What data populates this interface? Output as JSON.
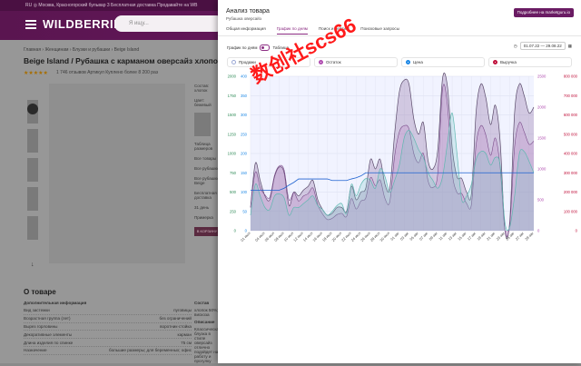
{
  "wb": {
    "top_strip": "RU   ◎ Москва, Красногорский бульвар 3   Бесплатная доставка   Продавайте на WB",
    "logo": "WILDBERRIES",
    "search_placeholder": "Я ищу...",
    "breadcrumb": "Главная  ›  Женщинам  ›  Блузки и рубашки  ›  Beige Island",
    "product_title": "Beige Island / Рубашка с карманом оверсайз хлопок с длинным",
    "stars": "★★★★★",
    "meta": "1 746 отзывов    Артикул            Куплено более 8 200 раз",
    "side_labels": [
      "Состав: хлопок",
      "Цвет: бежевый",
      "Таблица размеров",
      "Все товары",
      "Все рубашки",
      "Все рубашки Beige",
      "Бесплатная доставка",
      "31 день",
      "Примерка"
    ],
    "buy_label": "В КОРЗИНУ",
    "about_title": "О товаре",
    "specs_title": "Дополнительная информация",
    "specs": [
      {
        "k": "Вид застежки",
        "v": "пуговицы"
      },
      {
        "k": "Возрастная группа (лет)",
        "v": "без ограничений"
      },
      {
        "k": "Вырез горловины",
        "v": "воротник-стойка"
      },
      {
        "k": "Декоративные элементы",
        "v": "карман"
      },
      {
        "k": "Длина изделия по спинке",
        "v": "75 см"
      },
      {
        "k": "Назначение",
        "v": "большие размеры; для беременных; офис"
      }
    ],
    "composition_title": "Состав",
    "composition": "хлопок 50%; вискоза",
    "description_title": "Описание",
    "description": "Классическая блузка в стиле оверсайз отлично подойдет на работу и прогулку"
  },
  "panel": {
    "title": "Анализ товара",
    "subtitle": "Рубашка оверсайз",
    "details_button": "Подробнее на marketguru.io",
    "tabs": [
      "Общая информация",
      "График по дням",
      "Поиск и рейтинг",
      "Поисковые запросы"
    ],
    "active_tab": 1,
    "daily_label": "График по дням",
    "table_label": "Таблица",
    "date_range": "01.07.22 — 29.08.22",
    "legend": [
      {
        "label": "Продажи",
        "color": "#9aa8d4"
      },
      {
        "label": "Остаток",
        "color": "#b04db0"
      },
      {
        "label": "Цена",
        "color": "#1e88e5"
      },
      {
        "label": "Выручка",
        "color": "#c0123c"
      }
    ]
  },
  "watermark": "数创社scs66",
  "chart_data": {
    "type": "line",
    "x": [
      "01 июл",
      "02 июл",
      "03 июл",
      "04 июл",
      "05 июл",
      "06 июл",
      "07 июл",
      "08 июл",
      "09 июл",
      "10 июл",
      "11 июл",
      "12 июл",
      "13 июл",
      "14 июл",
      "15 июл",
      "16 июл",
      "17 июл",
      "18 июл",
      "19 июл",
      "20 июл",
      "21 июл",
      "22 июл",
      "23 июл",
      "24 июл",
      "25 июл",
      "26 июл",
      "27 июл",
      "28 июл",
      "29 июл",
      "30 июл",
      "31 июл",
      "01 авг",
      "02 авг",
      "03 авг",
      "04 авг",
      "05 авг",
      "06 авг",
      "07 авг",
      "08 авг",
      "09 авг",
      "10 авг",
      "11 авг",
      "12 авг",
      "13 авг",
      "14 авг",
      "15 авг",
      "16 авг",
      "17 авг",
      "18 авг",
      "19 авг",
      "20 авг",
      "21 авг",
      "22 авг",
      "23 авг",
      "24 авг",
      "25 авг",
      "26 авг",
      "27 авг",
      "28 авг",
      "29 авг"
    ],
    "x_tick_labels": [
      "01 июл",
      "04 июл",
      "06 июл",
      "08 июл",
      "10 июл",
      "12 июл",
      "14 июл",
      "16 июл",
      "18 июл",
      "20 июл",
      "22 июл",
      "24 июл",
      "26 июл",
      "28 июл",
      "30 июл",
      "01 авг",
      "03 авг",
      "05 авг",
      "07 авг",
      "09 авг",
      "11 авг",
      "13 авг",
      "15 авг",
      "17 авг",
      "19 авг",
      "21 авг",
      "23 авг",
      "25 авг",
      "27 авг",
      "29 авг"
    ],
    "left_axis": {
      "ticks": [
        0,
        250,
        500,
        750,
        1000,
        1250,
        1500,
        1750,
        2000
      ],
      "ylim": [
        0,
        2000
      ]
    },
    "mid_axis": {
      "ticks": [
        0,
        50,
        100,
        150,
        200,
        250,
        300,
        350,
        400
      ],
      "ylim": [
        0,
        400
      ]
    },
    "right_axis_left": {
      "ticks": [
        0,
        500,
        1000,
        1500,
        2000,
        2500
      ],
      "ylim": [
        0,
        2500
      ]
    },
    "right_axis": {
      "ticks": [
        "0",
        "100 000",
        "200 000",
        "300 000",
        "400 000",
        "500 000",
        "600 000",
        "700 000",
        "800 000"
      ],
      "ylim": [
        0,
        800000
      ]
    },
    "series": [
      {
        "name": "Остаток",
        "axis": "right_axis_left",
        "values": [
          380,
          950,
          700,
          580,
          540,
          900,
          1050,
          980,
          500,
          620,
          480,
          560,
          600,
          690,
          420,
          270,
          180,
          200,
          260,
          280,
          230,
          520,
          350,
          480,
          530,
          860,
          730,
          820,
          520,
          470,
          1200,
          1600,
          1700,
          1650,
          1250,
          1100,
          1250,
          800,
          700,
          930,
          2300,
          2050,
          950,
          620,
          600,
          440,
          420,
          1400,
          1700,
          1550,
          1220,
          1500,
          1020,
          0,
          100,
          1350,
          1750,
          1600,
          1400,
          1450
        ]
      },
      {
        "name": "Продажи",
        "axis": "mid_axis",
        "values": [
          40,
          120,
          90,
          60,
          55,
          90,
          95,
          85,
          40,
          60,
          60,
          70,
          80,
          90,
          65,
          55,
          40,
          50,
          65,
          70,
          45,
          120,
          90,
          120,
          135,
          130,
          110,
          160,
          140,
          100,
          130,
          170,
          240,
          260,
          240,
          210,
          190,
          150,
          130,
          110,
          140,
          225,
          305,
          200,
          80,
          90,
          120,
          185,
          205,
          200,
          170,
          190,
          170,
          20,
          10,
          90,
          200,
          205,
          180,
          150
        ]
      },
      {
        "name": "Цена",
        "axis": "mid_axis",
        "values": [
          105,
          105,
          105,
          105,
          105,
          105,
          105,
          110,
          118,
          125,
          134,
          134,
          134,
          134,
          134,
          134,
          134,
          130,
          130,
          130,
          130,
          134,
          137,
          142,
          150,
          150,
          150,
          150,
          150,
          150,
          150,
          150,
          150,
          150,
          150,
          150,
          150,
          150,
          150,
          150,
          150,
          150,
          150,
          150,
          150,
          150,
          150,
          150,
          150,
          150,
          150,
          150,
          150,
          150,
          150,
          150,
          150,
          150,
          150,
          150
        ]
      },
      {
        "name": "Выручка",
        "axis": "right_axis",
        "values": [
          120000,
          350000,
          260000,
          180000,
          160000,
          280000,
          330000,
          300000,
          130000,
          200000,
          180000,
          210000,
          230000,
          260000,
          160000,
          110000,
          80000,
          90000,
          120000,
          120000,
          100000,
          230000,
          160000,
          200000,
          220000,
          370000,
          320000,
          370000,
          240000,
          220000,
          500000,
          720000,
          780000,
          760000,
          580000,
          500000,
          560000,
          360000,
          320000,
          420000,
          790000,
          750000,
          430000,
          280000,
          270000,
          200000,
          190000,
          620000,
          760000,
          690000,
          550000,
          650000,
          460000,
          0,
          50000,
          610000,
          760000,
          700000,
          610000,
          640000
        ]
      }
    ],
    "grid": true,
    "title": "",
    "xlabel": "",
    "ylabel": ""
  }
}
